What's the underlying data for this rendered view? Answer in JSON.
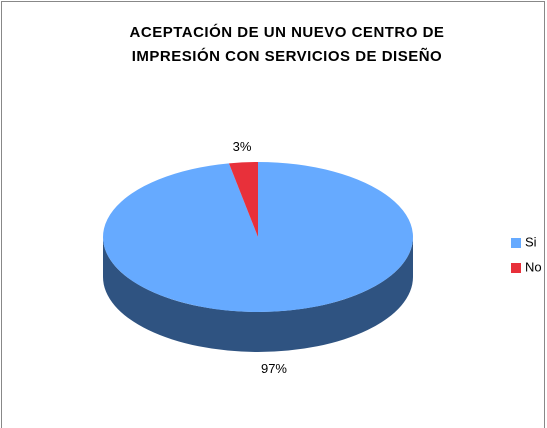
{
  "chart_data": {
    "type": "pie3d",
    "title": [
      "ACEPTACIÓN DE UN NUEVO CENTRO DE",
      "IMPRESIÓN CON SERVICIOS DE DISEÑO"
    ],
    "categories": [
      "Si",
      "No"
    ],
    "values": [
      97,
      3
    ],
    "value_labels": [
      "97%",
      "3%"
    ],
    "colors": [
      "#66aaff",
      "#e8303a"
    ],
    "side_color": "#2f5381",
    "legend": "right"
  }
}
